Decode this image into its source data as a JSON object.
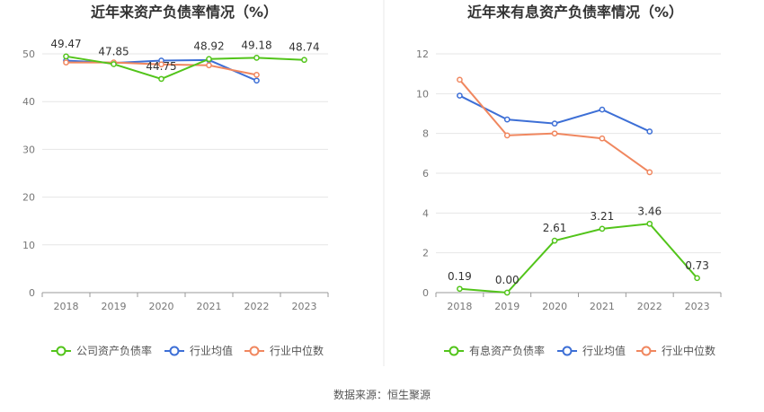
{
  "colors": {
    "company": "#52c41a",
    "industry_avg": "#3d6fd6",
    "industry_median": "#f0875f",
    "grid": "#e6e6e6",
    "axis_text": "#777777",
    "title_text": "#333333",
    "divider": "#e8e8e8"
  },
  "footer": {
    "source": "数据来源：恒生聚源"
  },
  "chart_data": [
    {
      "type": "line",
      "title": "近年来资产负债率情况（%）",
      "categories": [
        "2018",
        "2019",
        "2020",
        "2021",
        "2022",
        "2023"
      ],
      "ylim": [
        0,
        50
      ],
      "yticks": [
        "0",
        "10",
        "20",
        "30",
        "40",
        "50"
      ],
      "series": [
        {
          "name": "公司资产负债率",
          "values": [
            49.47,
            47.85,
            44.75,
            48.92,
            49.18,
            48.74
          ],
          "labels": [
            "49.47",
            "47.85",
            "44.75",
            "48.92",
            "49.18",
            "48.74"
          ]
        },
        {
          "name": "行业均值",
          "values": [
            48.6,
            48.1,
            48.6,
            48.7,
            44.4,
            null
          ]
        },
        {
          "name": "行业中位数",
          "values": [
            48.2,
            48.2,
            47.8,
            47.6,
            45.6,
            null
          ]
        }
      ],
      "legend": "bottom"
    },
    {
      "type": "line",
      "title": "近年来有息资产负债率情况（%）",
      "categories": [
        "2018",
        "2019",
        "2020",
        "2021",
        "2022",
        "2023"
      ],
      "ylim": [
        0,
        12
      ],
      "yticks": [
        "0",
        "2",
        "4",
        "6",
        "8",
        "10",
        "12"
      ],
      "series": [
        {
          "name": "有息资产负债率",
          "values": [
            0.19,
            0.0,
            2.61,
            3.21,
            3.46,
            0.73
          ],
          "labels": [
            "0.19",
            "0.00",
            "2.61",
            "3.21",
            "3.46",
            "0.73"
          ]
        },
        {
          "name": "行业均值",
          "values": [
            9.9,
            8.7,
            8.5,
            9.2,
            8.1,
            null
          ]
        },
        {
          "name": "行业中位数",
          "values": [
            10.7,
            7.9,
            8.0,
            7.75,
            6.05,
            null
          ]
        }
      ],
      "legend": "bottom"
    }
  ]
}
